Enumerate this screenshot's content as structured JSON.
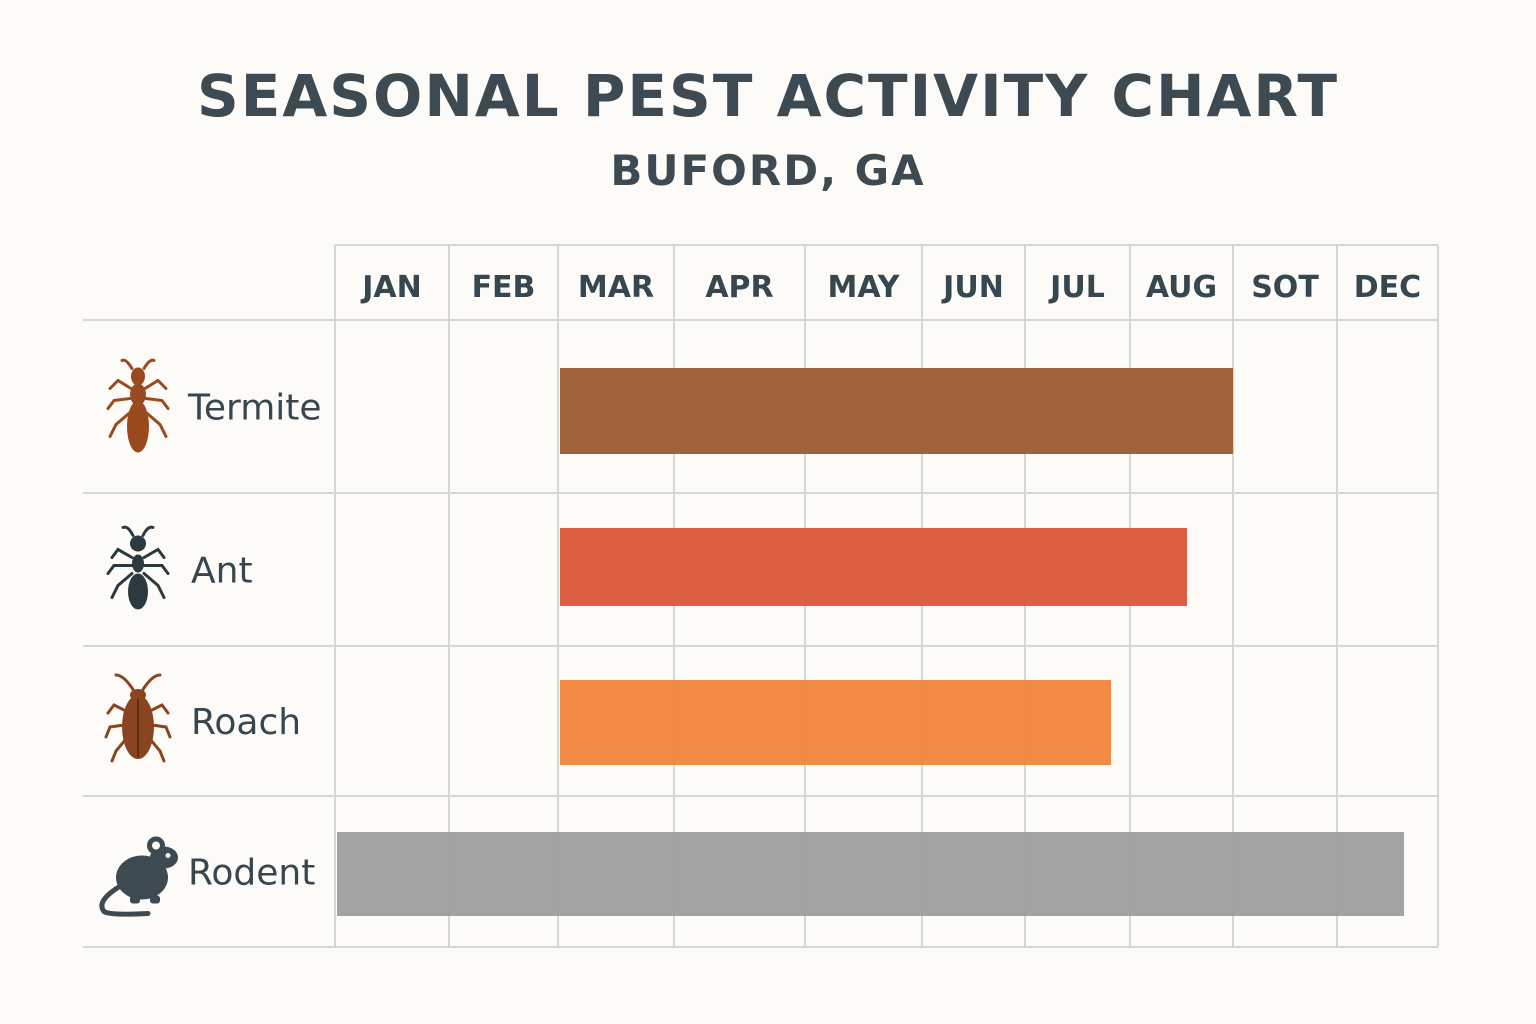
{
  "header": {
    "title": "SEASONAL PEST ACTIVITY CHART",
    "subtitle": "BUFORD, GA"
  },
  "colors": {
    "background": "#fcfbf7",
    "grid": "#d6d6d6",
    "text": "#37474f"
  },
  "chart_data": {
    "type": "bar",
    "title": "SEASONAL PEST ACTIVITY CHART",
    "subtitle": "BUFORD, GA",
    "categories": [
      "JAN",
      "FEB",
      "MAR",
      "APR",
      "MAY",
      "JUN",
      "JUL",
      "AUG",
      "SOT",
      "DEC"
    ],
    "grid": true,
    "series": [
      {
        "name": "Termite",
        "icon": "termite-icon",
        "color": "#9a5b33",
        "start": "MAR",
        "end": "AUG"
      },
      {
        "name": "Ant",
        "icon": "ant-icon",
        "color": "#dc573a",
        "start": "MAR",
        "end": "AUG"
      },
      {
        "name": "Roach",
        "icon": "roach-icon",
        "color": "#f0843b",
        "start": "MAR",
        "end": "JUL"
      },
      {
        "name": "Rodent",
        "icon": "rodent-icon",
        "color": "#9e9e9e",
        "start": "JAN",
        "end": "DEC"
      }
    ]
  }
}
